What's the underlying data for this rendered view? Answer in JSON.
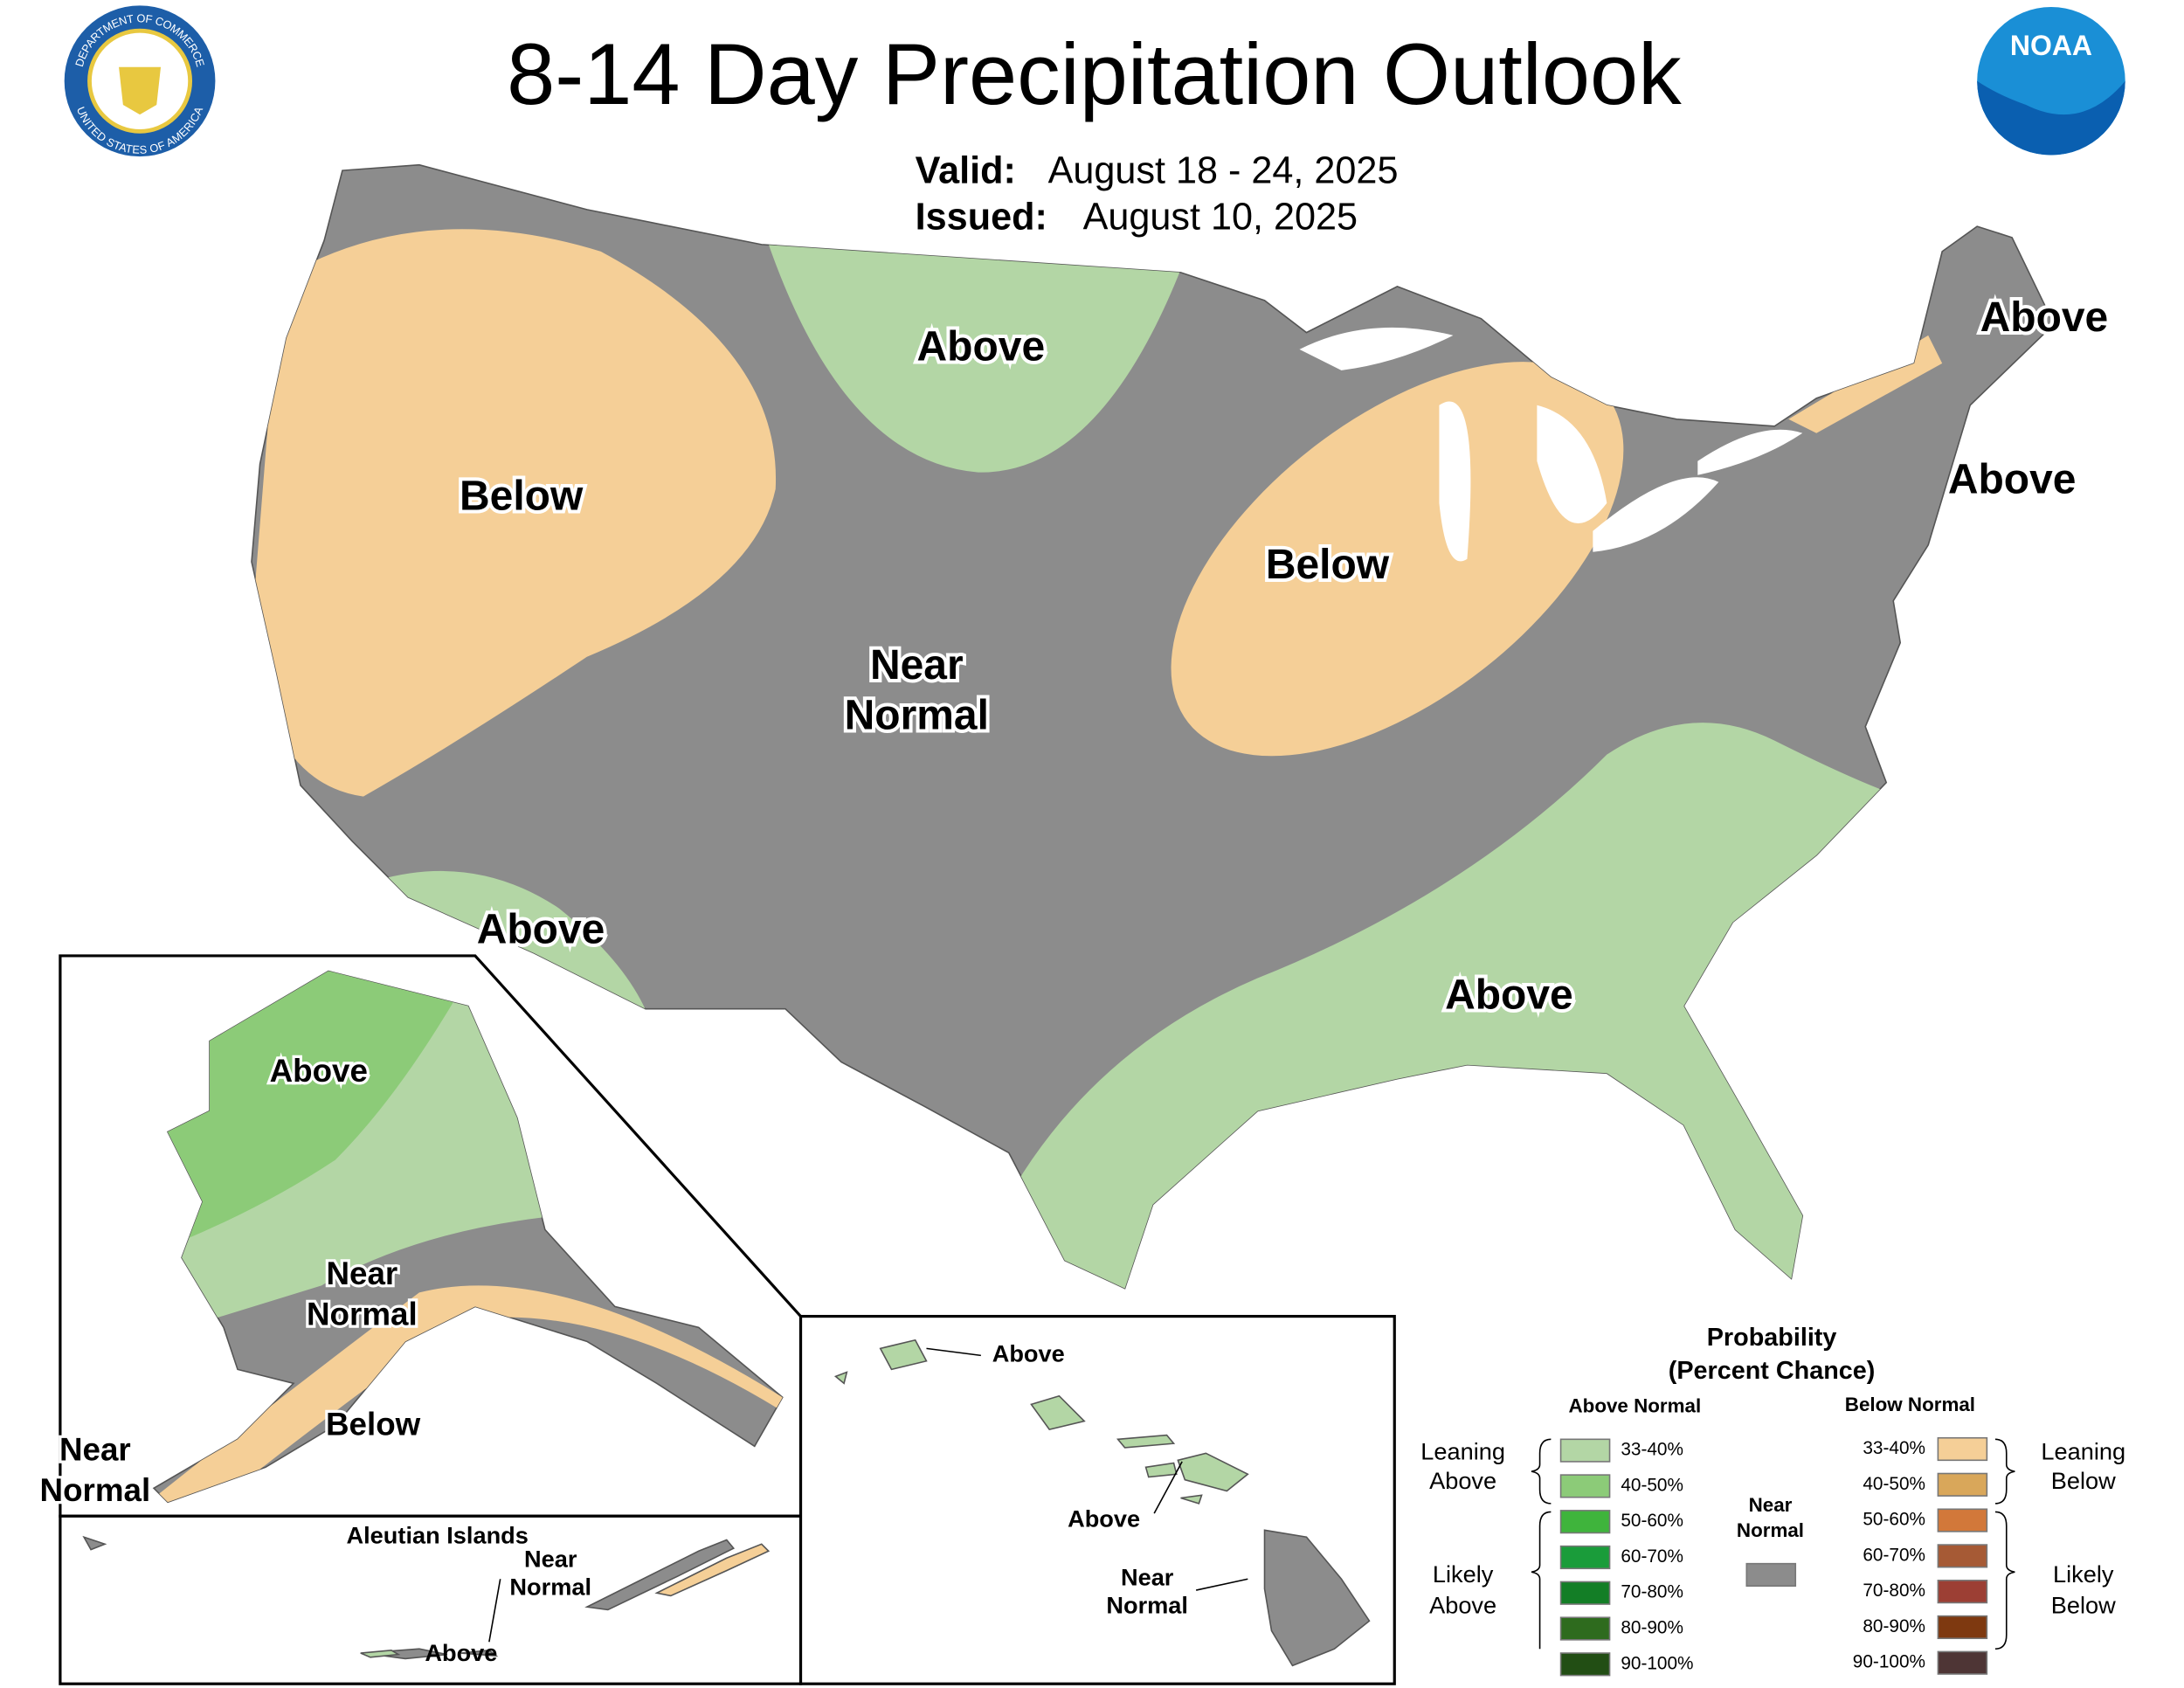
{
  "header": {
    "title": "8-14 Day Precipitation Outlook",
    "valid_label": "Valid:",
    "valid": "August 18 - 24, 2025",
    "issued_label": "Issued:",
    "issued": "August 10, 2025"
  },
  "logos": {
    "seal_top": "DEPARTMENT OF COMMERCE",
    "seal_bottom": "UNITED STATES OF AMERICA",
    "noaa": "NOAA"
  },
  "conus_labels": {
    "west": "Below",
    "north_plains": "Above",
    "northeast_1": "Above",
    "northeast_2": "Above",
    "midwest": "Below",
    "central": [
      "Near",
      "Normal"
    ],
    "southwest": "Above",
    "southeast": "Above"
  },
  "alaska": {
    "north": "Above",
    "central": [
      "Near",
      "Normal"
    ],
    "south": "Below",
    "west": [
      "Near",
      "Normal"
    ]
  },
  "aleutians": {
    "title": "Aleutian Islands",
    "near": [
      "Near",
      "Normal"
    ],
    "above": "Above"
  },
  "hawaii": {
    "kauai": "Above",
    "maui": "Above",
    "big_island": [
      "Near",
      "Normal"
    ]
  },
  "legend": {
    "title": [
      "Probability",
      "(Percent Chance)"
    ],
    "above_header": "Above Normal",
    "below_header": "Below Normal",
    "near_normal": {
      "lines": [
        "Near",
        "Normal"
      ],
      "color": "#8c8c8c"
    },
    "leaning_above": [
      "Leaning",
      "Above"
    ],
    "likely_above": [
      "Likely",
      "Above"
    ],
    "leaning_below": [
      "Leaning",
      "Below"
    ],
    "likely_below": [
      "Likely",
      "Below"
    ],
    "above": [
      {
        "range": "33-40%",
        "color": "#b3d6a5"
      },
      {
        "range": "40-50%",
        "color": "#8ccb78"
      },
      {
        "range": "50-60%",
        "color": "#3fb43c"
      },
      {
        "range": "60-70%",
        "color": "#1a9c3a"
      },
      {
        "range": "70-80%",
        "color": "#137e26"
      },
      {
        "range": "80-90%",
        "color": "#2e6b1e"
      },
      {
        "range": "90-100%",
        "color": "#224e14"
      }
    ],
    "below": [
      {
        "range": "33-40%",
        "color": "#f5cf97"
      },
      {
        "range": "40-50%",
        "color": "#d9a75a"
      },
      {
        "range": "50-60%",
        "color": "#d2783a"
      },
      {
        "range": "60-70%",
        "color": "#a65a35"
      },
      {
        "range": "70-80%",
        "color": "#9c3f34"
      },
      {
        "range": "80-90%",
        "color": "#7e3910"
      },
      {
        "range": "90-100%",
        "color": "#4e3535"
      }
    ]
  }
}
